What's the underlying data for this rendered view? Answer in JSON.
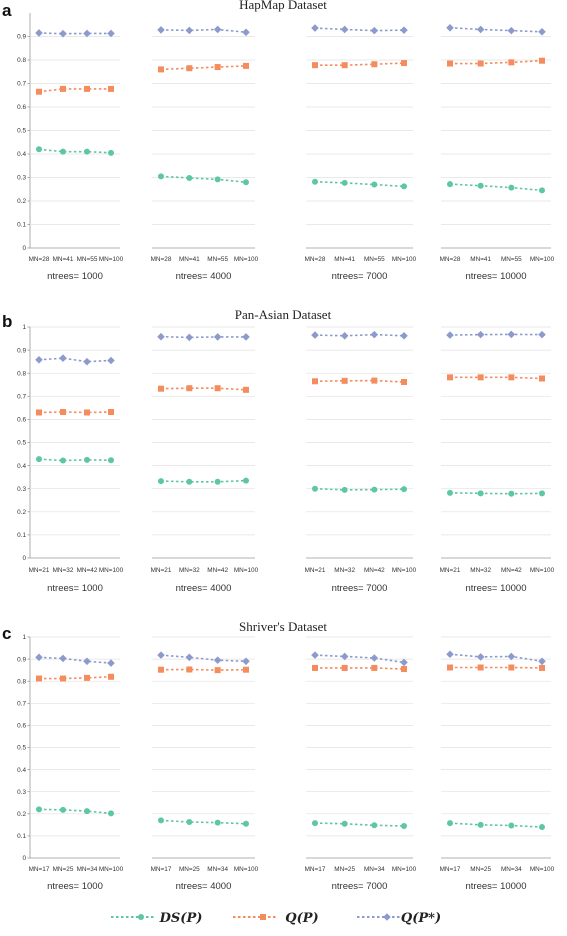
{
  "chart_data": [
    {
      "type": "line",
      "panel": "a",
      "title": "HapMap Dataset",
      "ylim": [
        0,
        1
      ],
      "yticks": [
        "0",
        "0.1",
        "0.2",
        "0.3",
        "0.4",
        "0.5",
        "0.6",
        "0.7",
        "0.8",
        "0.9"
      ],
      "grid": true,
      "subplots": [
        {
          "xlabel": "ntrees= 1000",
          "categories": [
            "MN=28",
            "MN=41",
            "MN=55",
            "MN=100"
          ],
          "series": [
            {
              "key": "ds",
              "values": [
                0.42,
                0.41,
                0.41,
                0.405
              ]
            },
            {
              "key": "q",
              "values": [
                0.665,
                0.677,
                0.677,
                0.677
              ]
            },
            {
              "key": "qs",
              "values": [
                0.915,
                0.912,
                0.913,
                0.913
              ]
            }
          ]
        },
        {
          "xlabel": "ntrees= 4000",
          "categories": [
            "MN=28",
            "MN=41",
            "MN=55",
            "MN=100"
          ],
          "series": [
            {
              "key": "ds",
              "values": [
                0.305,
                0.298,
                0.292,
                0.28
              ]
            },
            {
              "key": "q",
              "values": [
                0.76,
                0.765,
                0.77,
                0.775
              ]
            },
            {
              "key": "qs",
              "values": [
                0.928,
                0.926,
                0.93,
                0.918
              ]
            }
          ]
        },
        {
          "xlabel": "ntrees= 7000",
          "categories": [
            "MN=28",
            "MN=41",
            "MN=55",
            "MN=100"
          ],
          "series": [
            {
              "key": "ds",
              "values": [
                0.282,
                0.277,
                0.27,
                0.262
              ]
            },
            {
              "key": "q",
              "values": [
                0.778,
                0.778,
                0.782,
                0.787
              ]
            },
            {
              "key": "qs",
              "values": [
                0.936,
                0.93,
                0.925,
                0.927
              ]
            }
          ]
        },
        {
          "xlabel": "ntrees= 10000",
          "categories": [
            "MN=28",
            "MN=41",
            "MN=55",
            "MN=100"
          ],
          "series": [
            {
              "key": "ds",
              "values": [
                0.272,
                0.265,
                0.257,
                0.245
              ]
            },
            {
              "key": "q",
              "values": [
                0.785,
                0.785,
                0.79,
                0.797
              ]
            },
            {
              "key": "qs",
              "values": [
                0.937,
                0.93,
                0.925,
                0.92
              ]
            }
          ]
        }
      ]
    },
    {
      "type": "line",
      "panel": "b",
      "title": "Pan-Asian Dataset",
      "ylim": [
        0,
        1
      ],
      "yticks": [
        "0",
        "0.1",
        "0.2",
        "0.3",
        "0.4",
        "0.5",
        "0.6",
        "0.7",
        "0.8",
        "0.9",
        "1"
      ],
      "grid": true,
      "subplots": [
        {
          "xlabel": "ntrees= 1000",
          "categories": [
            "MN=21",
            "MN=32",
            "MN=42",
            "MN=100"
          ],
          "series": [
            {
              "key": "ds",
              "values": [
                0.428,
                0.422,
                0.425,
                0.423
              ]
            },
            {
              "key": "q",
              "values": [
                0.63,
                0.632,
                0.63,
                0.632
              ]
            },
            {
              "key": "qs",
              "values": [
                0.858,
                0.865,
                0.85,
                0.855
              ]
            }
          ]
        },
        {
          "xlabel": "ntrees= 4000",
          "categories": [
            "MN=21",
            "MN=32",
            "MN=42",
            "MN=100"
          ],
          "series": [
            {
              "key": "ds",
              "values": [
                0.333,
                0.33,
                0.33,
                0.335
              ]
            },
            {
              "key": "q",
              "values": [
                0.733,
                0.735,
                0.735,
                0.728
              ]
            },
            {
              "key": "qs",
              "values": [
                0.958,
                0.955,
                0.957,
                0.957
              ]
            }
          ]
        },
        {
          "xlabel": "ntrees= 7000",
          "categories": [
            "MN=21",
            "MN=32",
            "MN=42",
            "MN=100"
          ],
          "series": [
            {
              "key": "ds",
              "values": [
                0.3,
                0.295,
                0.296,
                0.298
              ]
            },
            {
              "key": "q",
              "values": [
                0.765,
                0.767,
                0.768,
                0.762
              ]
            },
            {
              "key": "qs",
              "values": [
                0.965,
                0.962,
                0.967,
                0.962
              ]
            }
          ]
        },
        {
          "xlabel": "ntrees= 10000",
          "categories": [
            "MN=21",
            "MN=32",
            "MN=42",
            "MN=100"
          ],
          "series": [
            {
              "key": "ds",
              "values": [
                0.282,
                0.28,
                0.278,
                0.28
              ]
            },
            {
              "key": "q",
              "values": [
                0.782,
                0.782,
                0.782,
                0.777
              ]
            },
            {
              "key": "qs",
              "values": [
                0.965,
                0.967,
                0.968,
                0.967
              ]
            }
          ]
        }
      ]
    },
    {
      "type": "line",
      "panel": "c",
      "title": "Shriver's Dataset",
      "ylim": [
        0,
        1
      ],
      "yticks": [
        "0",
        "0.1",
        "0.2",
        "0.3",
        "0.4",
        "0.5",
        "0.6",
        "0.7",
        "0.8",
        "0.9",
        "1"
      ],
      "grid": true,
      "subplots": [
        {
          "xlabel": "ntrees= 1000",
          "categories": [
            "MN=17",
            "MN=25",
            "MN=34",
            "MN=100"
          ],
          "series": [
            {
              "key": "ds",
              "values": [
                0.22,
                0.218,
                0.212,
                0.202
              ]
            },
            {
              "key": "q",
              "values": [
                0.812,
                0.812,
                0.815,
                0.82
              ]
            },
            {
              "key": "qs",
              "values": [
                0.908,
                0.903,
                0.89,
                0.882
              ]
            }
          ]
        },
        {
          "xlabel": "ntrees= 4000",
          "categories": [
            "MN=17",
            "MN=25",
            "MN=34",
            "MN=100"
          ],
          "series": [
            {
              "key": "ds",
              "values": [
                0.17,
                0.163,
                0.16,
                0.155
              ]
            },
            {
              "key": "q",
              "values": [
                0.852,
                0.853,
                0.85,
                0.852
              ]
            },
            {
              "key": "qs",
              "values": [
                0.918,
                0.908,
                0.895,
                0.89
              ]
            }
          ]
        },
        {
          "xlabel": "ntrees= 7000",
          "categories": [
            "MN=17",
            "MN=25",
            "MN=34",
            "MN=100"
          ],
          "series": [
            {
              "key": "ds",
              "values": [
                0.158,
                0.155,
                0.148,
                0.145
              ]
            },
            {
              "key": "q",
              "values": [
                0.86,
                0.86,
                0.86,
                0.855
              ]
            },
            {
              "key": "qs",
              "values": [
                0.918,
                0.912,
                0.905,
                0.885
              ]
            }
          ]
        },
        {
          "xlabel": "ntrees= 10000",
          "categories": [
            "MN=17",
            "MN=25",
            "MN=34",
            "MN=100"
          ],
          "series": [
            {
              "key": "ds",
              "values": [
                0.158,
                0.15,
                0.147,
                0.14
              ]
            },
            {
              "key": "q",
              "values": [
                0.862,
                0.862,
                0.862,
                0.86
              ]
            },
            {
              "key": "qs",
              "values": [
                0.922,
                0.91,
                0.912,
                0.89
              ]
            }
          ]
        }
      ]
    }
  ],
  "legend": [
    {
      "key": "ds",
      "label": "DS(P)",
      "marker": "circle",
      "color": "#5dc6a4"
    },
    {
      "key": "q",
      "label": "Q(P)",
      "marker": "square",
      "color": "#f48c5e"
    },
    {
      "key": "qs",
      "label": "Q(P*)",
      "marker": "diamond",
      "color": "#8c9bcc"
    }
  ]
}
